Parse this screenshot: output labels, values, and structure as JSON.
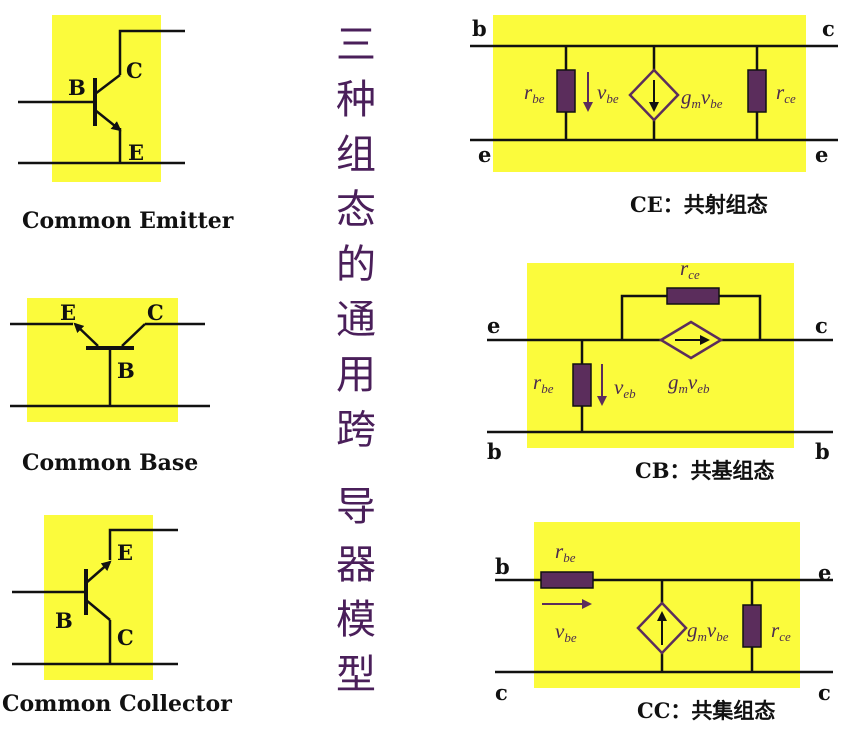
{
  "title_vertical": [
    "三",
    "种",
    "组",
    "态",
    "的",
    "通",
    "用",
    "跨",
    "导",
    "器",
    "模",
    "型"
  ],
  "colors": {
    "highlight": "#fbfb3c",
    "wire": "#111111",
    "resistor": "#5b2d5c",
    "label": "#4b2a4e",
    "title": "#4a1f5a"
  },
  "left": {
    "ce": {
      "caption": "Common Emitter",
      "b": "B",
      "c": "C",
      "e": "E"
    },
    "cb": {
      "caption": "Common Base",
      "e": "E",
      "c": "C",
      "b": "B"
    },
    "cc": {
      "caption": "Common Collector",
      "e": "E",
      "b": "B",
      "c": "C"
    }
  },
  "right": {
    "ce": {
      "caption": "CE：共射组态",
      "tl": "b",
      "tr": "c",
      "bl": "e",
      "br": "e",
      "r_in": "r",
      "r_in_sub": "be",
      "v": "v",
      "v_sub": "be",
      "g": "g",
      "g_sub": "m",
      "gv": "v",
      "gv_sub": "be",
      "r_out": "r",
      "r_out_sub": "ce"
    },
    "cb": {
      "caption": "CB：共基组态",
      "tl": "e",
      "tr": "c",
      "bl": "b",
      "br": "b",
      "r_top": "r",
      "r_top_sub": "ce",
      "r_in": "r",
      "r_in_sub": "be",
      "v": "v",
      "v_sub": "eb",
      "g": "g",
      "g_sub": "m",
      "gv": "v",
      "gv_sub": "eb"
    },
    "cc": {
      "caption": "CC：共集组态",
      "tl": "b",
      "tr": "e",
      "bl": "c",
      "br": "c",
      "r_top": "r",
      "r_top_sub": "be",
      "v": "v",
      "v_sub": "be",
      "g": "g",
      "g_sub": "m",
      "gv": "v",
      "gv_sub": "be",
      "r_out": "r",
      "r_out_sub": "ce"
    }
  }
}
